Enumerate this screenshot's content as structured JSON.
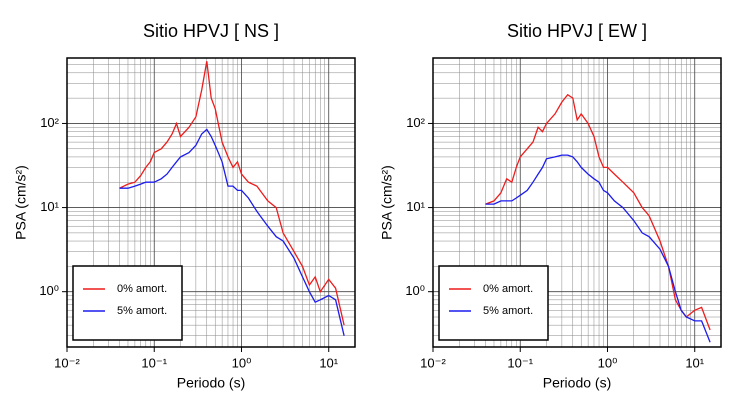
{
  "chart_data": [
    {
      "type": "line",
      "title": "Sitio HPVJ [ NS ]",
      "xlabel": "Periodo (s)",
      "ylabel": "PSA (cm/s²)",
      "xscale": "log",
      "yscale": "log",
      "grid": true,
      "legend": "lower left",
      "xlim": [
        0.01,
        20
      ],
      "ylim": [
        0.22,
        600
      ],
      "xticks": [
        {
          "value": 0.01,
          "label": "10⁻²"
        },
        {
          "value": 0.1,
          "label": "10⁻¹"
        },
        {
          "value": 1,
          "label": "10⁰"
        },
        {
          "value": 10,
          "label": "10¹"
        }
      ],
      "yticks": [
        {
          "value": 1,
          "label": "10⁰"
        },
        {
          "value": 10,
          "label": "10¹"
        },
        {
          "value": 100,
          "label": "10²"
        }
      ],
      "x": [
        0.04,
        0.05,
        0.06,
        0.07,
        0.08,
        0.09,
        0.1,
        0.12,
        0.14,
        0.16,
        0.18,
        0.2,
        0.25,
        0.3,
        0.35,
        0.4,
        0.45,
        0.5,
        0.6,
        0.7,
        0.8,
        0.9,
        1,
        1.2,
        1.5,
        2,
        2.5,
        3,
        4,
        5,
        6,
        7,
        8,
        10,
        12,
        15
      ],
      "series": [
        {
          "name": "0% amort.",
          "color": "#ee1c1c",
          "values": [
            17,
            19,
            20,
            24,
            30,
            35,
            45,
            50,
            60,
            75,
            100,
            70,
            90,
            120,
            250,
            550,
            200,
            150,
            60,
            40,
            30,
            35,
            25,
            20,
            18,
            12,
            10,
            5,
            3,
            2,
            1.2,
            1.5,
            1.0,
            1.4,
            1.1,
            0.4
          ]
        },
        {
          "name": "5% amort.",
          "color": "#1c1cee",
          "values": [
            17,
            17,
            18,
            19,
            20,
            20,
            20,
            22,
            25,
            30,
            35,
            40,
            45,
            55,
            75,
            85,
            70,
            55,
            35,
            18,
            18,
            16,
            16,
            13,
            9,
            6,
            4.5,
            4,
            2.5,
            1.5,
            1.0,
            0.75,
            0.8,
            0.9,
            0.8,
            0.3
          ]
        }
      ]
    },
    {
      "type": "line",
      "title": "Sitio HPVJ [ EW ]",
      "xlabel": "Periodo (s)",
      "ylabel": "PSA (cm/s²)",
      "xscale": "log",
      "yscale": "log",
      "grid": true,
      "legend": "lower left",
      "xlim": [
        0.01,
        20
      ],
      "ylim": [
        0.22,
        600
      ],
      "xticks": [
        {
          "value": 0.01,
          "label": "10⁻²"
        },
        {
          "value": 0.1,
          "label": "10⁻¹"
        },
        {
          "value": 1,
          "label": "10⁰"
        },
        {
          "value": 10,
          "label": "10¹"
        }
      ],
      "yticks": [
        {
          "value": 1,
          "label": "10⁰"
        },
        {
          "value": 10,
          "label": "10¹"
        },
        {
          "value": 100,
          "label": "10²"
        }
      ],
      "x": [
        0.04,
        0.05,
        0.06,
        0.07,
        0.08,
        0.09,
        0.1,
        0.12,
        0.14,
        0.16,
        0.18,
        0.2,
        0.25,
        0.3,
        0.35,
        0.4,
        0.45,
        0.5,
        0.6,
        0.7,
        0.8,
        0.9,
        1,
        1.2,
        1.5,
        2,
        2.5,
        3,
        4,
        5,
        6,
        7,
        8,
        10,
        12,
        15
      ],
      "series": [
        {
          "name": "0% amort.",
          "color": "#ee1c1c",
          "values": [
            11,
            12,
            15,
            22,
            20,
            30,
            40,
            50,
            60,
            90,
            80,
            100,
            130,
            180,
            220,
            200,
            110,
            130,
            100,
            70,
            40,
            30,
            30,
            25,
            20,
            15,
            10,
            8,
            4,
            2,
            0.8,
            0.6,
            0.5,
            0.6,
            0.65,
            0.35
          ]
        },
        {
          "name": "5% amort.",
          "color": "#1c1cee",
          "values": [
            11,
            11,
            12,
            12,
            12,
            13,
            14,
            16,
            20,
            25,
            30,
            38,
            40,
            42,
            42,
            40,
            35,
            30,
            25,
            22,
            20,
            16,
            15,
            12,
            10,
            7,
            5,
            4.5,
            3.2,
            2,
            1.0,
            0.6,
            0.5,
            0.45,
            0.45,
            0.25
          ]
        }
      ]
    }
  ]
}
